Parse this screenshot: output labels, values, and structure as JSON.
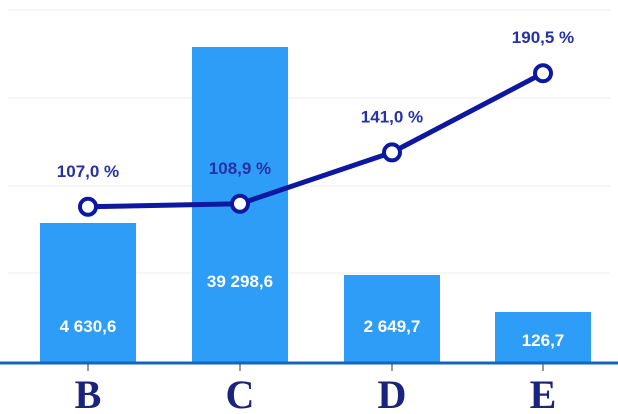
{
  "chart_data": {
    "type": "bar",
    "categories": [
      "B",
      "C",
      "D",
      "E"
    ],
    "series": [
      {
        "values": [
          4630.6,
          39298.6,
          2649.7,
          126.7
        ],
        "value_labels": [
          "4 630,6",
          "39 298,6",
          "2 649,7",
          "126,7"
        ],
        "color": "#2e9df7"
      },
      {
        "type": "line",
        "values": [
          107.0,
          108.9,
          141.0,
          190.5
        ],
        "value_labels": [
          "107,0 %",
          "108,9 %",
          "141,0 %",
          "190,5 %"
        ],
        "color": "#0d18a1"
      }
    ],
    "grid": true,
    "scale": "non-linear bar heights (broken axis)",
    "line_ylim": [
      10,
      230
    ],
    "axis_color": "#1565c0",
    "label_colors": {
      "bar": "#ffffff",
      "line": "#2731a6",
      "category": "#1a237e"
    }
  }
}
